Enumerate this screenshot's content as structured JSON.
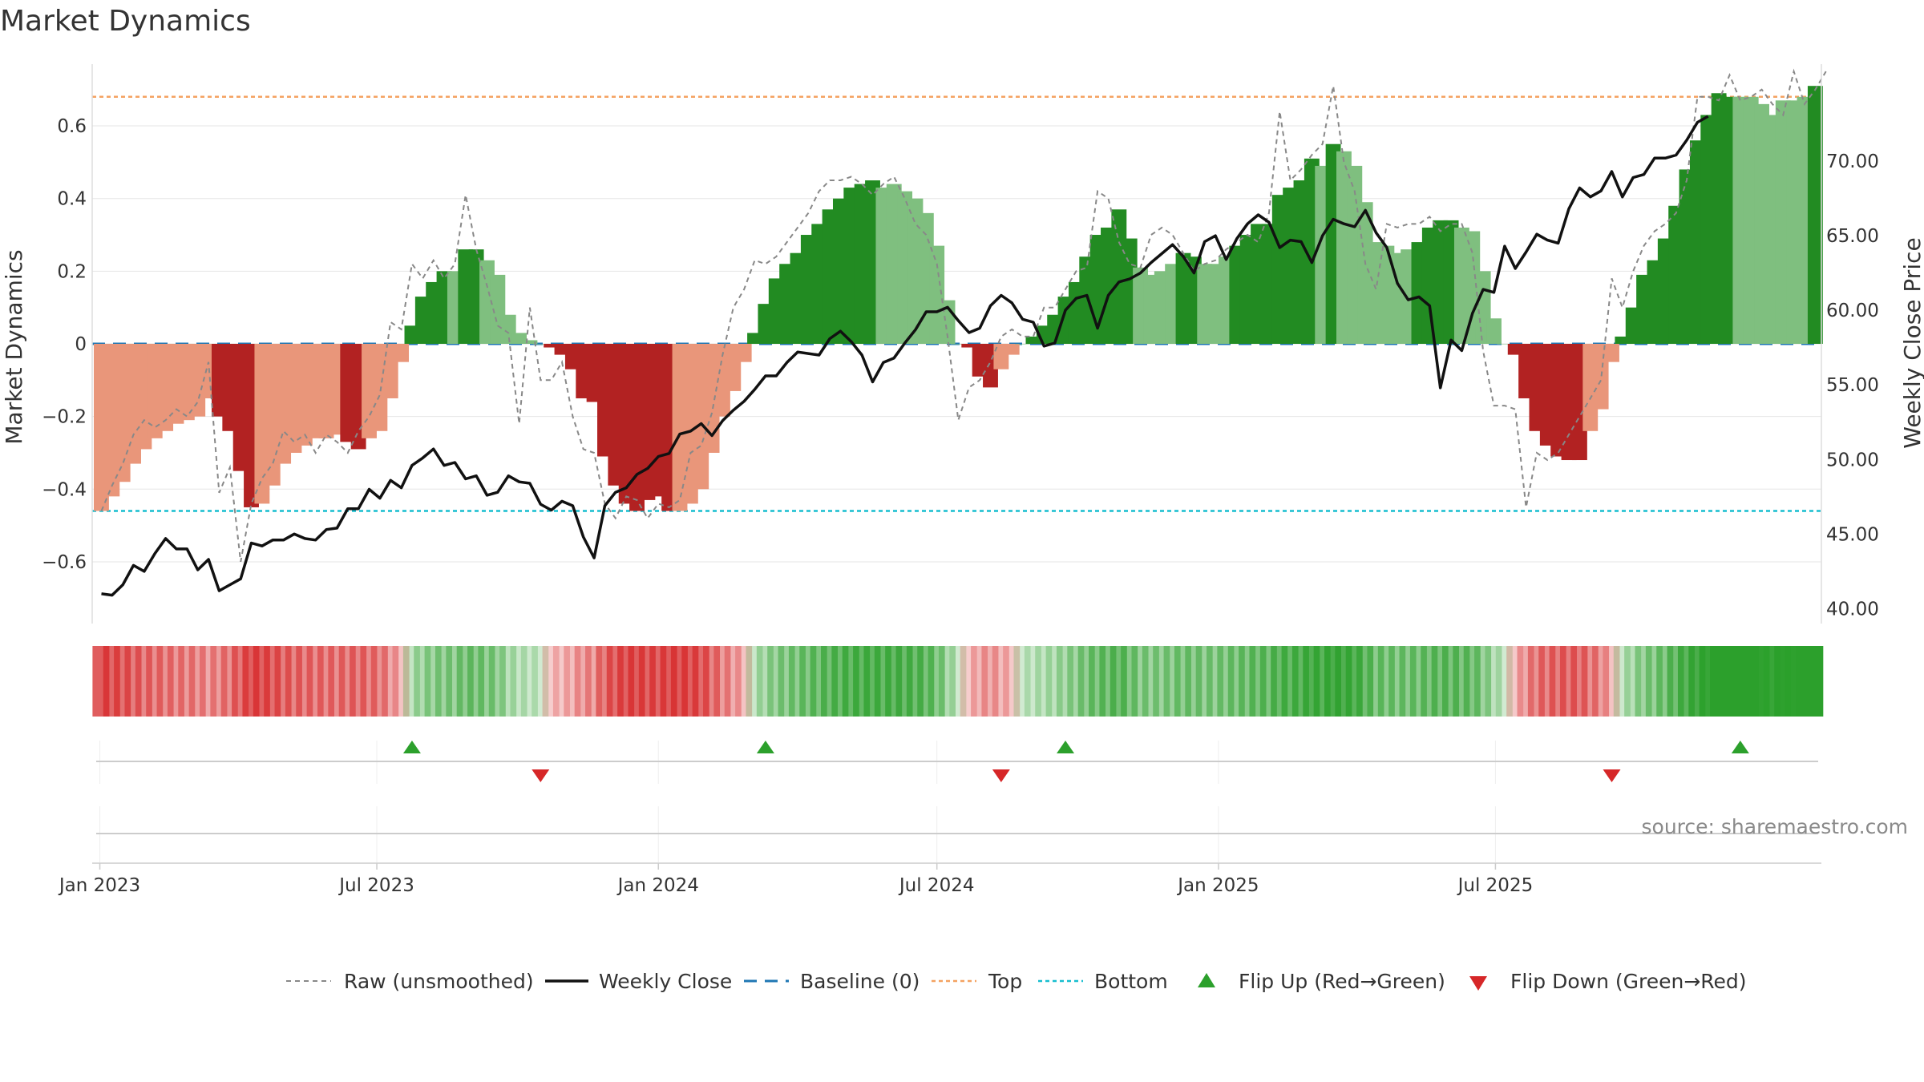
{
  "title": "Market Dynamics",
  "source_note": "source: sharemaestro.com",
  "legend": {
    "raw": "Raw (unsmoothed)",
    "close": "Weekly Close",
    "baseline": "Baseline (0)",
    "top": "Top",
    "bottom": "Bottom",
    "flip_up": "Flip Up (Red→Green)",
    "flip_down": "Flip Down (Green→Red)"
  },
  "colors": {
    "pos_strong": "#228b22",
    "pos_weak": "#7fbf7f",
    "neg_strong": "#b22222",
    "neg_weak": "#e9967a",
    "close_line": "#111111",
    "raw_line": "#888888",
    "baseline": "#1f77b4",
    "top": "#f4a261",
    "bottom": "#17becf",
    "flip_up": "#2ca02c",
    "flip_down": "#d62728"
  },
  "chart_data": {
    "type": "bar",
    "title": "Market Dynamics",
    "xlabel": "",
    "ylabel": "Market Dynamics",
    "y2label": "Weekly Close Price",
    "x_start": "2023-01-02",
    "x_step_days": 7,
    "x_ticks": [
      {
        "label": "Jan 2023",
        "date": "2023-01-01"
      },
      {
        "label": "Jul 2023",
        "date": "2023-07-01"
      },
      {
        "label": "Jan 2024",
        "date": "2024-01-01"
      },
      {
        "label": "Jul 2024",
        "date": "2024-07-01"
      },
      {
        "label": "Jan 2025",
        "date": "2025-01-01"
      },
      {
        "label": "Jul 2025",
        "date": "2025-07-01"
      }
    ],
    "ylim": [
      -0.77,
      0.77
    ],
    "y_ticks": [
      -0.6,
      -0.4,
      -0.2,
      0,
      0.2,
      0.4,
      0.6
    ],
    "y_tick_labels": [
      "−0.6",
      "−0.4",
      "−0.2",
      "0",
      "0.2",
      "0.4",
      "0.6"
    ],
    "y2lim": [
      39.0,
      76.5
    ],
    "y2_ticks": [
      40,
      45,
      50,
      55,
      60,
      65,
      70
    ],
    "y2_tick_labels": [
      "40.00",
      "45.00",
      "50.00",
      "55.00",
      "60.00",
      "65.00",
      "70.00"
    ],
    "top_level": 0.68,
    "bottom_level": -0.46,
    "baseline": 0,
    "grid": true,
    "legend_position": "bottom",
    "bars": [
      -0.46,
      -0.42,
      -0.38,
      -0.33,
      -0.29,
      -0.26,
      -0.24,
      -0.22,
      -0.21,
      -0.2,
      -0.15,
      -0.2,
      -0.24,
      -0.35,
      -0.45,
      -0.44,
      -0.39,
      -0.33,
      -0.3,
      -0.28,
      -0.26,
      -0.26,
      -0.25,
      -0.27,
      -0.29,
      -0.26,
      -0.24,
      -0.15,
      -0.05,
      0.05,
      0.13,
      0.17,
      0.2,
      0.2,
      0.26,
      0.26,
      0.23,
      0.19,
      0.08,
      0.03,
      0.01,
      0.0,
      -0.01,
      -0.03,
      -0.07,
      -0.15,
      -0.16,
      -0.31,
      -0.39,
      -0.44,
      -0.46,
      -0.43,
      -0.42,
      -0.46,
      -0.46,
      -0.44,
      -0.4,
      -0.3,
      -0.2,
      -0.13,
      -0.05,
      0.03,
      0.11,
      0.18,
      0.22,
      0.25,
      0.3,
      0.33,
      0.37,
      0.4,
      0.43,
      0.44,
      0.45,
      0.43,
      0.44,
      0.42,
      0.4,
      0.36,
      0.27,
      0.12,
      0.0,
      -0.01,
      -0.09,
      -0.12,
      -0.07,
      -0.03,
      0.0,
      0.02,
      0.05,
      0.08,
      0.13,
      0.17,
      0.24,
      0.3,
      0.32,
      0.37,
      0.29,
      0.21,
      0.19,
      0.2,
      0.22,
      0.25,
      0.24,
      0.22,
      0.22,
      0.24,
      0.27,
      0.3,
      0.33,
      0.33,
      0.41,
      0.43,
      0.45,
      0.51,
      0.49,
      0.55,
      0.53,
      0.49,
      0.39,
      0.28,
      0.27,
      0.25,
      0.26,
      0.28,
      0.32,
      0.34,
      0.34,
      0.32,
      0.31,
      0.2,
      0.07,
      0.0,
      -0.03,
      -0.15,
      -0.24,
      -0.28,
      -0.31,
      -0.32,
      -0.32,
      -0.24,
      -0.18,
      -0.05,
      0.02,
      0.1,
      0.19,
      0.23,
      0.29,
      0.38,
      0.48,
      0.56,
      0.63,
      0.69,
      0.68,
      0.68,
      0.68,
      0.66,
      0.63,
      0.67,
      0.67,
      0.68,
      0.71
    ],
    "strength": [
      "w",
      "w",
      "w",
      "w",
      "w",
      "w",
      "w",
      "w",
      "w",
      "w",
      "w",
      "s",
      "s",
      "s",
      "s",
      "w",
      "w",
      "w",
      "w",
      "w",
      "w",
      "w",
      "w",
      "s",
      "s",
      "w",
      "w",
      "w",
      "w",
      "s",
      "s",
      "s",
      "s",
      "w",
      "s",
      "s",
      "w",
      "w",
      "w",
      "w",
      "w",
      "w",
      "s",
      "s",
      "s",
      "s",
      "s",
      "s",
      "s",
      "s",
      "s",
      "s",
      "s",
      "s",
      "w",
      "w",
      "w",
      "w",
      "w",
      "w",
      "w",
      "s",
      "s",
      "s",
      "s",
      "s",
      "s",
      "s",
      "s",
      "s",
      "s",
      "s",
      "s",
      "w",
      "w",
      "w",
      "w",
      "w",
      "w",
      "w",
      "w",
      "s",
      "s",
      "s",
      "w",
      "w",
      "w",
      "s",
      "s",
      "s",
      "s",
      "s",
      "s",
      "s",
      "s",
      "s",
      "s",
      "w",
      "w",
      "w",
      "w",
      "s",
      "s",
      "w",
      "w",
      "w",
      "s",
      "s",
      "s",
      "s",
      "s",
      "s",
      "s",
      "s",
      "w",
      "s",
      "w",
      "w",
      "w",
      "w",
      "w",
      "w",
      "w",
      "s",
      "s",
      "s",
      "s",
      "w",
      "w",
      "w",
      "w",
      "w",
      "s",
      "s",
      "s",
      "s",
      "s",
      "s",
      "s",
      "w",
      "w",
      "w",
      "s",
      "s",
      "s",
      "s",
      "s",
      "s",
      "s",
      "s",
      "s",
      "s",
      "s",
      "w",
      "w",
      "w",
      "w",
      "w",
      "w",
      "w",
      "s",
      "s"
    ],
    "raw": [
      -0.46,
      -0.39,
      -0.33,
      -0.25,
      -0.21,
      -0.23,
      -0.21,
      -0.18,
      -0.2,
      -0.16,
      -0.05,
      -0.41,
      -0.34,
      -0.6,
      -0.44,
      -0.37,
      -0.33,
      -0.24,
      -0.27,
      -0.25,
      -0.3,
      -0.25,
      -0.27,
      -0.3,
      -0.24,
      -0.2,
      -0.14,
      0.06,
      0.04,
      0.22,
      0.18,
      0.23,
      0.18,
      0.22,
      0.41,
      0.26,
      0.16,
      0.05,
      0.03,
      -0.22,
      0.1,
      -0.1,
      -0.1,
      -0.05,
      -0.2,
      -0.29,
      -0.3,
      -0.44,
      -0.48,
      -0.42,
      -0.43,
      -0.48,
      -0.44,
      -0.45,
      -0.43,
      -0.3,
      -0.28,
      -0.19,
      -0.03,
      0.1,
      0.15,
      0.23,
      0.22,
      0.24,
      0.28,
      0.32,
      0.36,
      0.42,
      0.45,
      0.45,
      0.46,
      0.44,
      0.41,
      0.44,
      0.46,
      0.4,
      0.33,
      0.3,
      0.22,
      0.02,
      -0.21,
      -0.12,
      -0.1,
      -0.05,
      0.02,
      0.04,
      0.02,
      0.02,
      0.1,
      0.1,
      0.15,
      0.2,
      0.21,
      0.42,
      0.4,
      0.28,
      0.22,
      0.21,
      0.3,
      0.32,
      0.3,
      0.25,
      0.2,
      0.22,
      0.23,
      0.26,
      0.28,
      0.3,
      0.28,
      0.36,
      0.64,
      0.45,
      0.48,
      0.52,
      0.55,
      0.71,
      0.5,
      0.42,
      0.22,
      0.15,
      0.33,
      0.32,
      0.33,
      0.33,
      0.35,
      0.31,
      0.33,
      0.33,
      0.25,
      -0.02,
      -0.17,
      -0.17,
      -0.18,
      -0.45,
      -0.3,
      -0.32,
      -0.3,
      -0.25,
      -0.2,
      -0.15,
      -0.1,
      0.18,
      0.1,
      0.2,
      0.27,
      0.31,
      0.33,
      0.36,
      0.45,
      0.68,
      0.68,
      0.67,
      0.74,
      0.67,
      0.68,
      0.7,
      0.66,
      0.63,
      0.75,
      0.66,
      0.7,
      0.75
    ],
    "close": [
      41.0,
      40.9,
      41.6,
      42.9,
      42.5,
      43.7,
      44.7,
      44.0,
      44.0,
      42.6,
      43.3,
      41.2,
      41.6,
      42.0,
      44.4,
      44.2,
      44.6,
      44.6,
      45.0,
      44.7,
      44.6,
      45.3,
      45.4,
      46.7,
      46.7,
      48.0,
      47.4,
      48.6,
      48.1,
      49.6,
      50.1,
      50.7,
      49.6,
      49.8,
      48.7,
      48.9,
      47.6,
      47.8,
      48.9,
      48.5,
      48.4,
      47.0,
      46.6,
      47.2,
      46.9,
      44.8,
      43.4,
      46.9,
      47.8,
      48.1,
      49.0,
      49.4,
      50.2,
      50.4,
      51.7,
      51.9,
      52.4,
      51.6,
      52.6,
      53.3,
      53.9,
      54.7,
      55.6,
      55.6,
      56.5,
      57.2,
      57.1,
      57.0,
      58.1,
      58.6,
      57.9,
      57.0,
      55.2,
      56.5,
      56.8,
      57.8,
      58.7,
      59.9,
      59.9,
      60.2,
      59.3,
      58.5,
      58.8,
      60.3,
      61.0,
      60.5,
      59.4,
      59.2,
      57.6,
      57.8,
      60.0,
      60.8,
      61.0,
      58.8,
      61.0,
      61.9,
      62.1,
      62.5,
      63.2,
      63.8,
      64.4,
      63.6,
      62.5,
      64.6,
      65.0,
      63.4,
      64.8,
      65.8,
      66.4,
      65.9,
      64.2,
      64.7,
      64.6,
      63.2,
      65.0,
      66.1,
      65.8,
      65.6,
      66.7,
      65.2,
      64.2,
      61.8,
      60.7,
      60.9,
      60.3,
      54.8,
      58.0,
      57.3,
      59.8,
      61.4,
      61.2,
      64.3,
      62.8,
      63.9,
      65.1,
      64.7,
      64.5,
      66.8,
      68.2,
      67.6,
      68.0,
      69.3,
      67.6,
      68.9,
      69.1,
      70.2,
      70.2,
      70.4,
      71.4,
      72.6,
      73.0
    ],
    "flips": [
      {
        "index": 29,
        "dir": "up"
      },
      {
        "index": 41,
        "dir": "down"
      },
      {
        "index": 62,
        "dir": "up"
      },
      {
        "index": 84,
        "dir": "down"
      },
      {
        "index": 90,
        "dir": "up"
      },
      {
        "index": 141,
        "dir": "down"
      },
      {
        "index": 153,
        "dir": "up"
      }
    ]
  }
}
